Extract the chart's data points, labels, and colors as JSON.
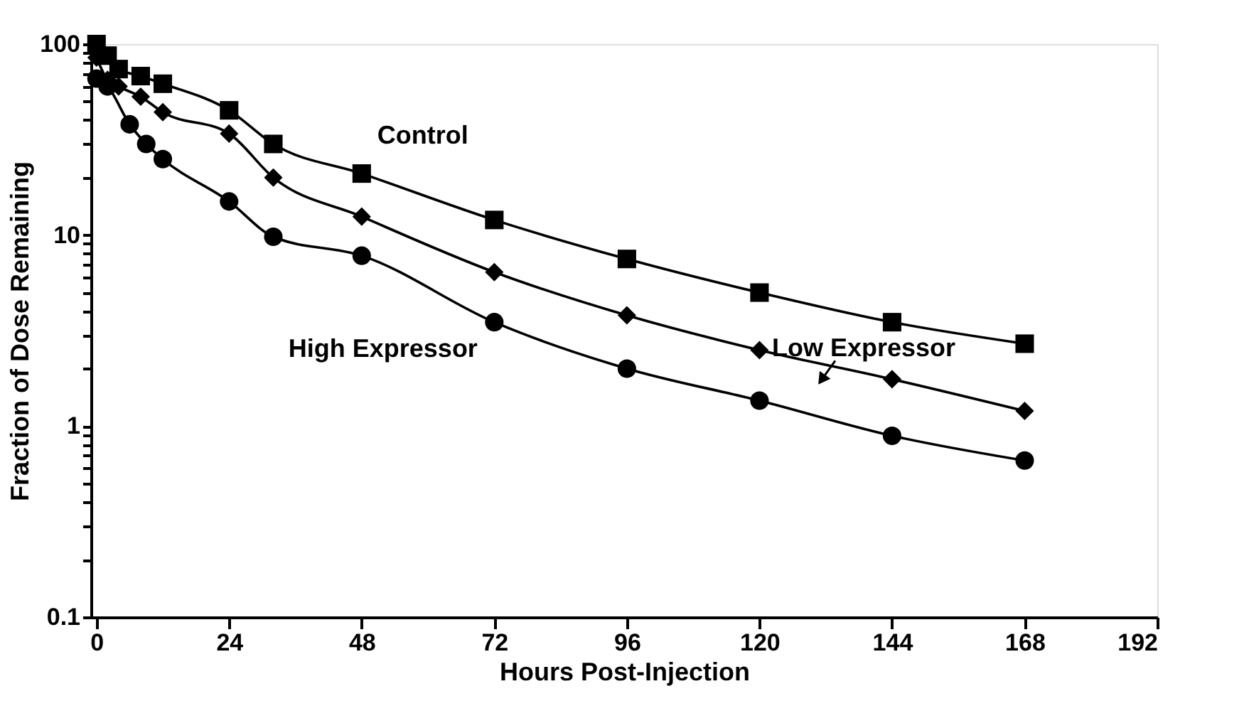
{
  "chart_data": {
    "type": "line",
    "xlabel": "Hours Post-Injection",
    "ylabel": "Fraction of Dose Remaining",
    "xlim": [
      -1,
      192
    ],
    "xticks": [
      0,
      24,
      48,
      72,
      96,
      120,
      144,
      168,
      192
    ],
    "ylim": [
      0.1,
      100
    ],
    "log": "y",
    "line_style": "solid",
    "yticks": [
      0.1,
      {
        "value": 0.2,
        "label": null
      },
      {
        "value": 0.3,
        "label": null
      },
      {
        "value": 0.4,
        "label": null
      },
      {
        "value": 0.5,
        "label": null
      },
      {
        "value": 0.6,
        "label": null
      },
      {
        "value": 0.7,
        "label": null
      },
      {
        "value": 0.8,
        "label": null
      },
      {
        "value": 0.9,
        "label": null
      },
      1,
      {
        "value": 2,
        "label": null
      },
      {
        "value": 3,
        "label": null
      },
      {
        "value": 4,
        "label": null
      },
      {
        "value": 5,
        "label": null
      },
      {
        "value": 6,
        "label": null
      },
      {
        "value": 7,
        "label": null
      },
      {
        "value": 8,
        "label": null
      },
      {
        "value": 9,
        "label": null
      },
      10,
      {
        "value": 20,
        "label": null
      },
      {
        "value": 30,
        "label": null
      },
      {
        "value": 40,
        "label": null
      },
      {
        "value": 50,
        "label": null
      },
      {
        "value": 60,
        "label": null
      },
      {
        "value": 70,
        "label": null
      },
      {
        "value": 80,
        "label": null
      },
      {
        "value": 90,
        "label": null
      },
      100
    ],
    "series": [
      {
        "name": "Control",
        "color": "#000000",
        "marker": "square",
        "x": [
          0,
          2,
          4,
          8,
          12,
          24,
          32,
          48,
          72,
          96,
          120,
          144,
          168
        ],
        "values": [
          100,
          87,
          74,
          68,
          62,
          45,
          30,
          21,
          12,
          7.5,
          5.0,
          3.5,
          2.7
        ]
      },
      {
        "name": "Low Expressor",
        "color": "#000000",
        "marker": "diamond",
        "x": [
          0,
          2,
          4,
          8,
          12,
          24,
          32,
          48,
          72,
          96,
          120,
          144,
          168
        ],
        "values": [
          85,
          65,
          60,
          53,
          44,
          34,
          20,
          12.5,
          6.4,
          3.8,
          2.5,
          1.76,
          1.2
        ]
      },
      {
        "name": "High Expressor",
        "color": "#000000",
        "marker": "circle",
        "x": [
          0,
          2,
          6,
          9,
          12,
          24,
          32,
          48,
          72,
          96,
          120,
          144,
          168
        ],
        "values": [
          66,
          60,
          38,
          30,
          25,
          15,
          9.8,
          7.8,
          3.5,
          2.0,
          1.36,
          0.89,
          0.66
        ]
      }
    ]
  }
}
